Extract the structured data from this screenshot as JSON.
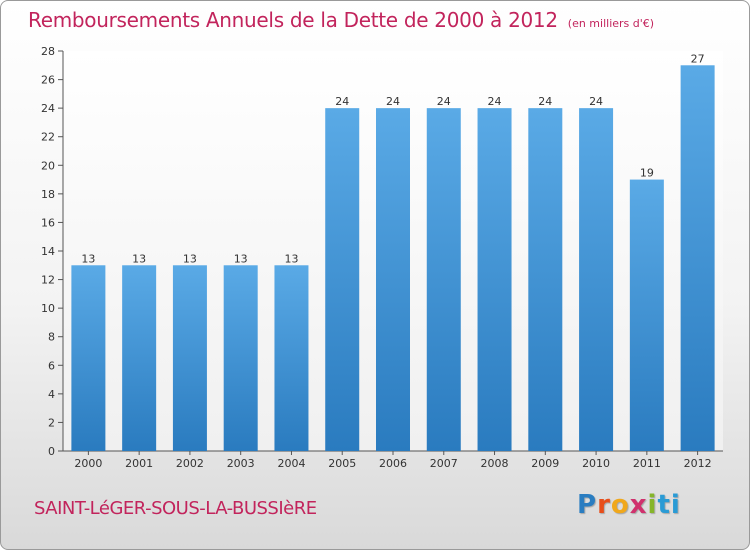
{
  "title": "Remboursements Annuels de la Dette de 2000 à 2012",
  "unit_label": "(en milliers d'€)",
  "commune": "SAINT-LéGER-SOUS-LA-BUSSIèRE",
  "logo": {
    "letters": [
      "P",
      "r",
      "o",
      "x",
      "i",
      "ti"
    ]
  },
  "colors": {
    "title": "#c2245c",
    "bar_top": "#5aaae6",
    "bar_bottom": "#2a7bbf"
  },
  "chart_data": {
    "type": "bar",
    "title": "Remboursements Annuels de la Dette de 2000 à 2012",
    "xlabel": "",
    "ylabel": "",
    "categories": [
      "2000",
      "2001",
      "2002",
      "2003",
      "2004",
      "2005",
      "2006",
      "2007",
      "2008",
      "2009",
      "2010",
      "2011",
      "2012"
    ],
    "values": [
      13,
      13,
      13,
      13,
      13,
      24,
      24,
      24,
      24,
      24,
      24,
      19,
      27
    ],
    "data_labels": [
      "13",
      "13",
      "13",
      "13",
      "13",
      "24",
      "24",
      "24",
      "24",
      "24",
      "24",
      "19",
      "27"
    ],
    "ylim": [
      0,
      28
    ],
    "yticks": [
      0,
      2,
      4,
      6,
      8,
      10,
      12,
      14,
      16,
      18,
      20,
      22,
      24,
      26,
      28
    ],
    "grid": false,
    "legend": "none"
  }
}
